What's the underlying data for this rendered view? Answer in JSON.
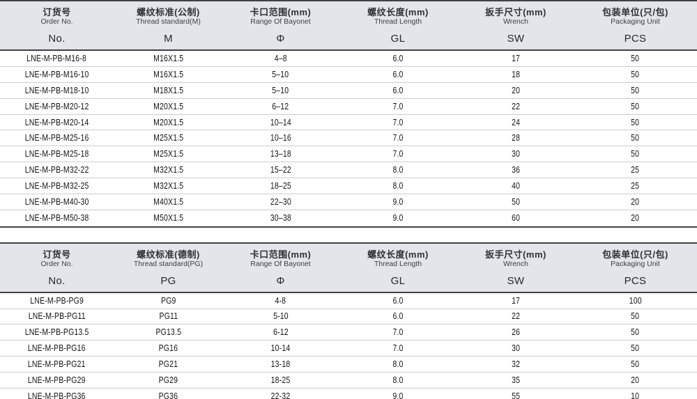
{
  "page": {
    "background": "#ffffff",
    "header_bg": "#e2e5e9",
    "border_dark": "#414141",
    "row_divider": "#c9cdd1",
    "text_color": "#141414"
  },
  "tables": [
    {
      "name": "metric-thread-table",
      "columns": [
        {
          "zh": "订货号",
          "en": "Order No.",
          "symbol": "No."
        },
        {
          "zh": "螺纹标准(公制)",
          "en": "Thread standard(M)",
          "symbol": "M"
        },
        {
          "zh": "卡口范围(mm)",
          "en": "Range Of Bayonet",
          "symbol": "Φ"
        },
        {
          "zh": "螺纹长度(mm)",
          "en": "Thread Length",
          "symbol": "GL"
        },
        {
          "zh": "扳手尺寸(mm)",
          "en": "Wrench",
          "symbol": "SW"
        },
        {
          "zh": "包装单位(只/包)",
          "en": "Packaging Unit",
          "symbol": "PCS"
        }
      ],
      "rows": [
        [
          "LNE-M-PB-M16-8",
          "M16X1.5",
          "4–8",
          "6.0",
          "17",
          "50"
        ],
        [
          "LNE-M-PB-M16-10",
          "M16X1.5",
          "5–10",
          "6.0",
          "18",
          "50"
        ],
        [
          "LNE-M-PB-M18-10",
          "M18X1.5",
          "5–10",
          "6.0",
          "20",
          "50"
        ],
        [
          "LNE-M-PB-M20-12",
          "M20X1.5",
          "6–12",
          "7.0",
          "22",
          "50"
        ],
        [
          "LNE-M-PB-M20-14",
          "M20X1.5",
          "10–14",
          "7.0",
          "24",
          "50"
        ],
        [
          "LNE-M-PB-M25-16",
          "M25X1.5",
          "10–16",
          "7.0",
          "28",
          "50"
        ],
        [
          "LNE-M-PB-M25-18",
          "M25X1.5",
          "13–18",
          "7.0",
          "30",
          "50"
        ],
        [
          "LNE-M-PB-M32-22",
          "M32X1.5",
          "15–22",
          "8.0",
          "36",
          "25"
        ],
        [
          "LNE-M-PB-M32-25",
          "M32X1.5",
          "18–25",
          "8.0",
          "40",
          "25"
        ],
        [
          "LNE-M-PB-M40-30",
          "M40X1.5",
          "22–30",
          "9.0",
          "50",
          "20"
        ],
        [
          "LNE-M-PB-M50-38",
          "M50X1.5",
          "30–38",
          "9.0",
          "60",
          "20"
        ]
      ]
    },
    {
      "name": "pg-thread-table",
      "columns": [
        {
          "zh": "订货号",
          "en": "Order No.",
          "symbol": "No."
        },
        {
          "zh": "螺纹标准(德制)",
          "en": "Thread standard(PG)",
          "symbol": "PG"
        },
        {
          "zh": "卡口范围(mm)",
          "en": "Range Of Bayonet",
          "symbol": "Φ"
        },
        {
          "zh": "螺纹长度(mm)",
          "en": "Thread Length",
          "symbol": "GL"
        },
        {
          "zh": "扳手尺寸(mm)",
          "en": "Wrench",
          "symbol": "SW"
        },
        {
          "zh": "包装单位(只/包)",
          "en": "Packaging Unit",
          "symbol": "PCS"
        }
      ],
      "rows": [
        [
          "LNE-M-PB-PG9",
          "PG9",
          "4-8",
          "6.0",
          "17",
          "100"
        ],
        [
          "LNE-M-PB-PG11",
          "PG11",
          "5-10",
          "6.0",
          "22",
          "50"
        ],
        [
          "LNE-M-PB-PG13.5",
          "PG13.5",
          "6-12",
          "7.0",
          "26",
          "50"
        ],
        [
          "LNE-M-PB-PG16",
          "PG16",
          "10-14",
          "7.0",
          "30",
          "50"
        ],
        [
          "LNE-M-PB-PG21",
          "PG21",
          "13-18",
          "8.0",
          "32",
          "50"
        ],
        [
          "LNE-M-PB-PG29",
          "PG29",
          "18-25",
          "8.0",
          "35",
          "20"
        ],
        [
          "LNE-M-PB-PG36",
          "PG36",
          "22-32",
          "9.0",
          "55",
          "10"
        ]
      ]
    }
  ]
}
